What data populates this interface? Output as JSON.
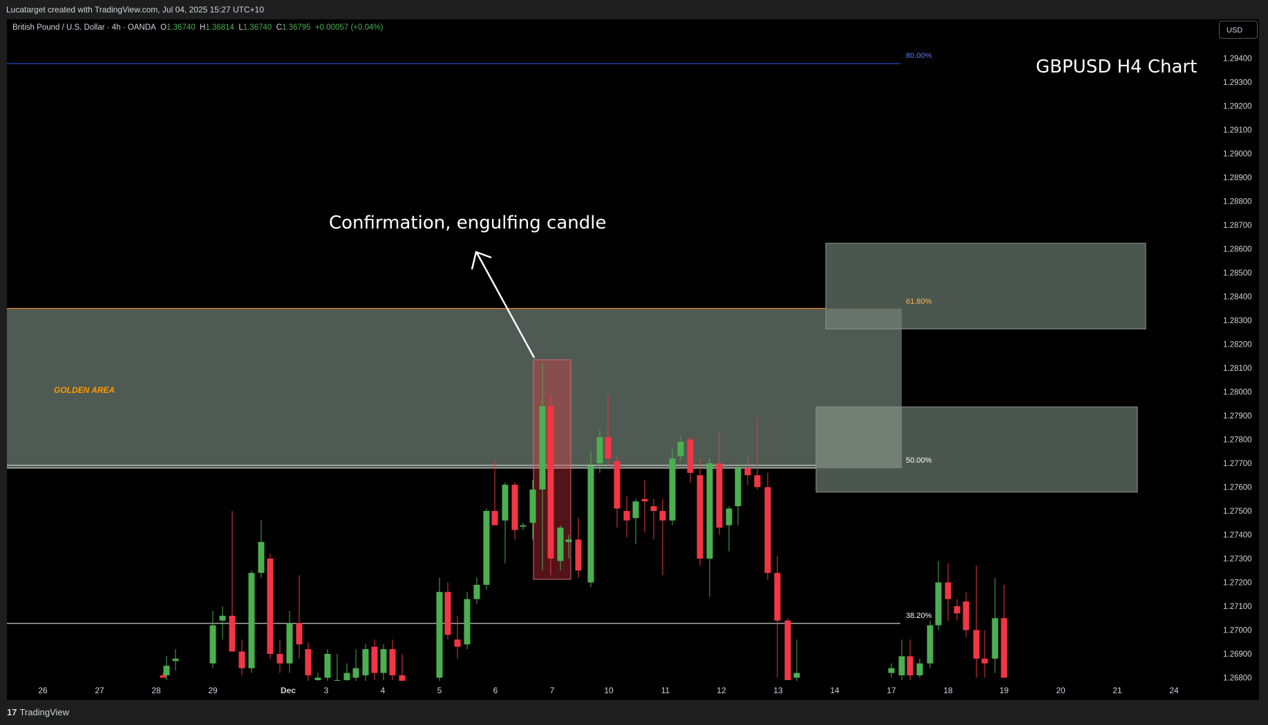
{
  "header": {
    "credit": "Lucatarget created with TradingView.com, Jul 04, 2025 15:27 UTC+10"
  },
  "legend": {
    "symbol": "British Pound / U.S. Dollar · 4h · OANDA",
    "o_label": "O",
    "o": "1.36740",
    "h_label": "H",
    "h": "1.36814",
    "l_label": "L",
    "l": "1.36740",
    "c_label": "C",
    "c": "1.36795",
    "change": "+0.00057 (+0.04%)"
  },
  "currency_button": "USD",
  "footer": {
    "brand": "TradingView"
  },
  "colors": {
    "up": "#4caf50",
    "down": "#f23645",
    "zone": "#4f5b52",
    "zone_light": "#7f8c82",
    "fib80": "#2962ff",
    "fib618": "#ff9800",
    "text": "#ffffff",
    "golden": "#ff9800",
    "highlight": "#f23645"
  },
  "chart_data": {
    "type": "candlestick",
    "title": "GBPUSD H4 Chart",
    "ylim": [
      1.2679,
      1.295
    ],
    "y_ticks": [
      "1.29400",
      "1.29300",
      "1.29200",
      "1.29100",
      "1.29000",
      "1.28900",
      "1.28800",
      "1.28700",
      "1.28600",
      "1.28500",
      "1.28400",
      "1.28300",
      "1.28200",
      "1.28100",
      "1.28000",
      "1.27900",
      "1.27800",
      "1.27700",
      "1.27600",
      "1.27500",
      "1.27400",
      "1.27300",
      "1.27200",
      "1.27100",
      "1.27000",
      "1.26900",
      "1.26800"
    ],
    "x_ticks": [
      "26",
      "27",
      "28",
      "29",
      "Dec",
      "3",
      "4",
      "5",
      "6",
      "7",
      "10",
      "11",
      "12",
      "13",
      "14",
      "17",
      "18",
      "19",
      "20",
      "21",
      "24"
    ],
    "fib_levels": [
      {
        "label": "80.00%",
        "price": 1.29378
      },
      {
        "label": "61.80%",
        "price": 1.28347
      },
      {
        "label": "50.00%",
        "price": 1.2768
      },
      {
        "label": "38.20%",
        "price": 1.27028
      }
    ],
    "zones": [
      {
        "label": "GOLDEN AREA",
        "top": 1.28347,
        "bottom": 1.2768
      },
      {
        "label": "",
        "top": 1.28624,
        "bottom": 1.28264
      },
      {
        "label": "",
        "top": 1.27937,
        "bottom": 1.27579
      }
    ],
    "annotation": "Confirmation, engulfing candle",
    "candles": [
      {
        "o": 1.2681,
        "h": 1.2682,
        "l": 1.268,
        "c": 1.268
      },
      {
        "o": 1.2681,
        "h": 1.2689,
        "l": 1.2679,
        "c": 1.2685
      },
      {
        "o": 1.2687,
        "h": 1.2692,
        "l": 1.2683,
        "c": 1.2688
      },
      {
        "o": 1.2686,
        "h": 1.2708,
        "l": 1.2684,
        "c": 1.2702
      },
      {
        "o": 1.2704,
        "h": 1.271,
        "l": 1.2696,
        "c": 1.2706
      },
      {
        "o": 1.2706,
        "h": 1.275,
        "l": 1.2693,
        "c": 1.2691
      },
      {
        "o": 1.2691,
        "h": 1.2696,
        "l": 1.2681,
        "c": 1.2684
      },
      {
        "o": 1.2684,
        "h": 1.2725,
        "l": 1.2682,
        "c": 1.2724
      },
      {
        "o": 1.2724,
        "h": 1.2746,
        "l": 1.2722,
        "c": 1.2737
      },
      {
        "o": 1.273,
        "h": 1.2732,
        "l": 1.2688,
        "c": 1.269
      },
      {
        "o": 1.269,
        "h": 1.2696,
        "l": 1.2682,
        "c": 1.2686
      },
      {
        "o": 1.2686,
        "h": 1.2708,
        "l": 1.2682,
        "c": 1.2703
      },
      {
        "o": 1.2703,
        "h": 1.2723,
        "l": 1.2688,
        "c": 1.2694
      },
      {
        "o": 1.2692,
        "h": 1.2695,
        "l": 1.2678,
        "c": 1.2681
      },
      {
        "o": 1.2679,
        "h": 1.2682,
        "l": 1.2677,
        "c": 1.268
      },
      {
        "o": 1.268,
        "h": 1.2692,
        "l": 1.2678,
        "c": 1.269
      },
      {
        "o": 1.2678,
        "h": 1.269,
        "l": 1.2676,
        "c": 1.2679
      },
      {
        "o": 1.2679,
        "h": 1.2686,
        "l": 1.2677,
        "c": 1.2682
      },
      {
        "o": 1.268,
        "h": 1.2692,
        "l": 1.2678,
        "c": 1.2684
      },
      {
        "o": 1.2681,
        "h": 1.2694,
        "l": 1.2678,
        "c": 1.2692
      },
      {
        "o": 1.2693,
        "h": 1.2696,
        "l": 1.2679,
        "c": 1.2682
      },
      {
        "o": 1.2682,
        "h": 1.2694,
        "l": 1.2679,
        "c": 1.2692
      },
      {
        "o": 1.2692,
        "h": 1.2696,
        "l": 1.2679,
        "c": 1.2681
      },
      {
        "o": 1.2681,
        "h": 1.269,
        "l": 1.2676,
        "c": 1.2678
      },
      {
        "o": 1.268,
        "h": 1.2722,
        "l": 1.2678,
        "c": 1.2716
      },
      {
        "o": 1.2716,
        "h": 1.272,
        "l": 1.2696,
        "c": 1.2698
      },
      {
        "o": 1.2696,
        "h": 1.2706,
        "l": 1.2688,
        "c": 1.2693
      },
      {
        "o": 1.2694,
        "h": 1.2716,
        "l": 1.2692,
        "c": 1.2713
      },
      {
        "o": 1.2713,
        "h": 1.2722,
        "l": 1.2711,
        "c": 1.2719
      },
      {
        "o": 1.2719,
        "h": 1.2751,
        "l": 1.2717,
        "c": 1.275
      },
      {
        "o": 1.275,
        "h": 1.2771,
        "l": 1.2746,
        "c": 1.2744
      },
      {
        "o": 1.2746,
        "h": 1.2762,
        "l": 1.2728,
        "c": 1.2761
      },
      {
        "o": 1.2761,
        "h": 1.2762,
        "l": 1.2738,
        "c": 1.2742
      },
      {
        "o": 1.2744,
        "h": 1.2745,
        "l": 1.2742,
        "c": 1.2744
      },
      {
        "o": 1.2745,
        "h": 1.2763,
        "l": 1.2738,
        "c": 1.2759
      },
      {
        "o": 1.2759,
        "h": 1.2812,
        "l": 1.2725,
        "c": 1.2794
      },
      {
        "o": 1.2794,
        "h": 1.2798,
        "l": 1.2723,
        "c": 1.273
      },
      {
        "o": 1.2729,
        "h": 1.2744,
        "l": 1.2725,
        "c": 1.2743
      },
      {
        "o": 1.2737,
        "h": 1.274,
        "l": 1.273,
        "c": 1.2738
      },
      {
        "o": 1.2738,
        "h": 1.2747,
        "l": 1.2722,
        "c": 1.2725
      },
      {
        "o": 1.272,
        "h": 1.2775,
        "l": 1.2718,
        "c": 1.2769
      },
      {
        "o": 1.277,
        "h": 1.2784,
        "l": 1.2766,
        "c": 1.2781
      },
      {
        "o": 1.2781,
        "h": 1.2799,
        "l": 1.2769,
        "c": 1.2772
      },
      {
        "o": 1.2771,
        "h": 1.2773,
        "l": 1.2743,
        "c": 1.2751
      },
      {
        "o": 1.275,
        "h": 1.2756,
        "l": 1.2739,
        "c": 1.2746
      },
      {
        "o": 1.2747,
        "h": 1.2755,
        "l": 1.2736,
        "c": 1.2754
      },
      {
        "o": 1.2755,
        "h": 1.2763,
        "l": 1.2741,
        "c": 1.2754
      },
      {
        "o": 1.2752,
        "h": 1.2755,
        "l": 1.2738,
        "c": 1.275
      },
      {
        "o": 1.275,
        "h": 1.2755,
        "l": 1.2723,
        "c": 1.2746
      },
      {
        "o": 1.2746,
        "h": 1.2776,
        "l": 1.2744,
        "c": 1.2772
      },
      {
        "o": 1.2773,
        "h": 1.2781,
        "l": 1.2771,
        "c": 1.2779
      },
      {
        "o": 1.278,
        "h": 1.2781,
        "l": 1.2762,
        "c": 1.2766
      },
      {
        "o": 1.2765,
        "h": 1.2772,
        "l": 1.2727,
        "c": 1.273
      },
      {
        "o": 1.273,
        "h": 1.2772,
        "l": 1.2714,
        "c": 1.277
      },
      {
        "o": 1.277,
        "h": 1.2783,
        "l": 1.274,
        "c": 1.2743
      },
      {
        "o": 1.2744,
        "h": 1.2752,
        "l": 1.2733,
        "c": 1.2751
      },
      {
        "o": 1.2752,
        "h": 1.277,
        "l": 1.2744,
        "c": 1.2768
      },
      {
        "o": 1.2768,
        "h": 1.2773,
        "l": 1.2761,
        "c": 1.2765
      },
      {
        "o": 1.2765,
        "h": 1.2789,
        "l": 1.2759,
        "c": 1.276
      },
      {
        "o": 1.276,
        "h": 1.2766,
        "l": 1.2721,
        "c": 1.2724
      },
      {
        "o": 1.2724,
        "h": 1.2731,
        "l": 1.268,
        "c": 1.2704
      },
      {
        "o": 1.2704,
        "h": 1.2705,
        "l": 1.268,
        "c": 1.2679
      },
      {
        "o": 1.268,
        "h": 1.2696,
        "l": 1.2678,
        "c": 1.2682
      },
      {
        "o": 1.2682,
        "h": 1.2686,
        "l": 1.268,
        "c": 1.2684
      },
      {
        "o": 1.2681,
        "h": 1.2696,
        "l": 1.2679,
        "c": 1.2689
      },
      {
        "o": 1.2689,
        "h": 1.2696,
        "l": 1.2679,
        "c": 1.2681
      },
      {
        "o": 1.2681,
        "h": 1.2688,
        "l": 1.268,
        "c": 1.2686
      },
      {
        "o": 1.2686,
        "h": 1.2704,
        "l": 1.2684,
        "c": 1.2702
      },
      {
        "o": 1.2702,
        "h": 1.2729,
        "l": 1.27,
        "c": 1.272
      },
      {
        "o": 1.272,
        "h": 1.2728,
        "l": 1.2704,
        "c": 1.2713
      },
      {
        "o": 1.271,
        "h": 1.2713,
        "l": 1.2704,
        "c": 1.2707
      },
      {
        "o": 1.2712,
        "h": 1.2716,
        "l": 1.2697,
        "c": 1.27
      },
      {
        "o": 1.27,
        "h": 1.2727,
        "l": 1.268,
        "c": 1.2688
      },
      {
        "o": 1.2688,
        "h": 1.27,
        "l": 1.268,
        "c": 1.2686
      },
      {
        "o": 1.2688,
        "h": 1.2722,
        "l": 1.2682,
        "c": 1.2705
      },
      {
        "o": 1.2705,
        "h": 1.2719,
        "l": 1.268,
        "c": 1.268
      }
    ],
    "candle_x": [
      236,
      241,
      254,
      308,
      322,
      336,
      350,
      364,
      378,
      391,
      405,
      419,
      433,
      446,
      460,
      474,
      488,
      502,
      515,
      529,
      542,
      555,
      568,
      582,
      636,
      648,
      662,
      676,
      690,
      704,
      716,
      731,
      745,
      757,
      771,
      785,
      797,
      811,
      823,
      837,
      855,
      868,
      880,
      893,
      907,
      920,
      933,
      946,
      959,
      973,
      985,
      999,
      1013,
      1027,
      1041,
      1055,
      1068,
      1082,
      1096,
      1111,
      1125,
      1140,
      1153,
      1290,
      1305,
      1317,
      1331,
      1346,
      1358,
      1372,
      1385,
      1398,
      1413,
      1425,
      1440,
      1453
    ]
  }
}
